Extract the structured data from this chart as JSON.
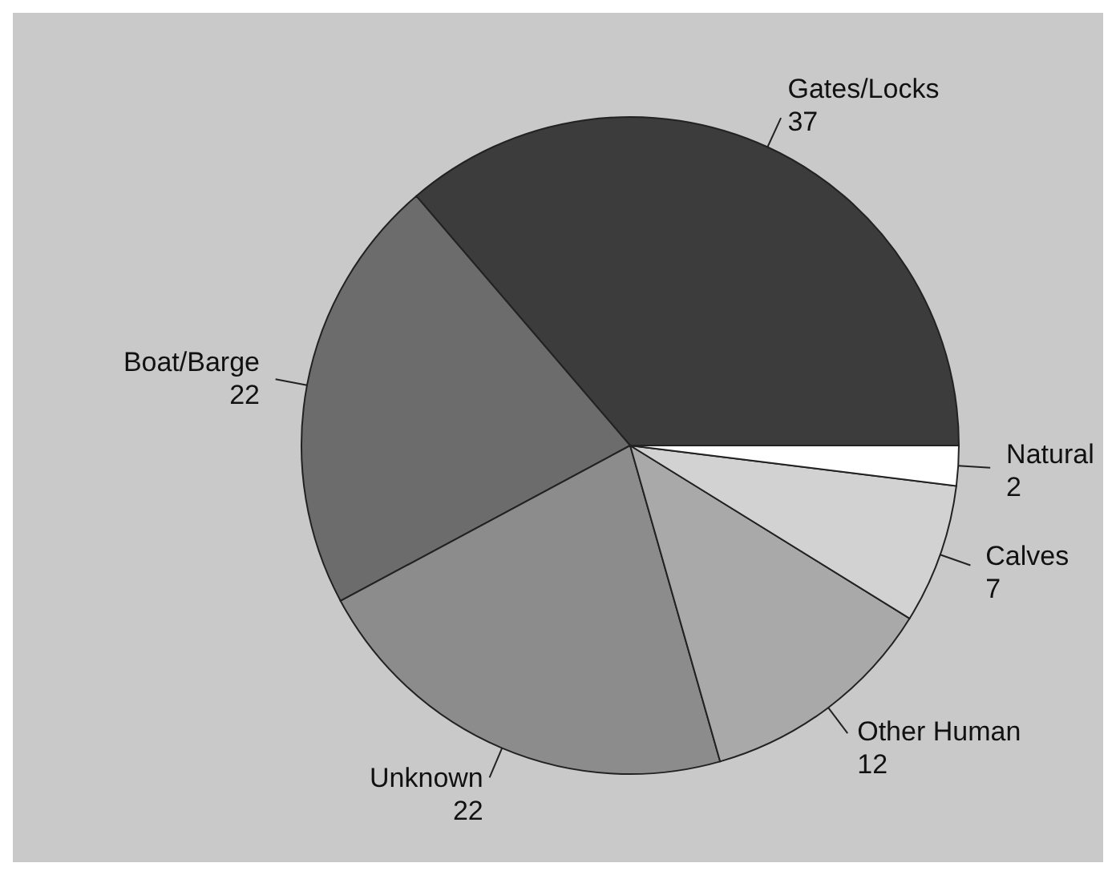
{
  "chart_data": {
    "type": "pie",
    "categories": [
      "Gates/Locks",
      "Boat/Barge",
      "Unknown",
      "Other Human",
      "Calves",
      "Natural"
    ],
    "values": [
      37,
      22,
      22,
      12,
      7,
      2
    ],
    "colors": [
      "#3c3c3c",
      "#6c6c6c",
      "#8c8c8c",
      "#a9a9a9",
      "#d2d2d2",
      "#ffffff"
    ],
    "data_labels": true,
    "legend": false
  }
}
